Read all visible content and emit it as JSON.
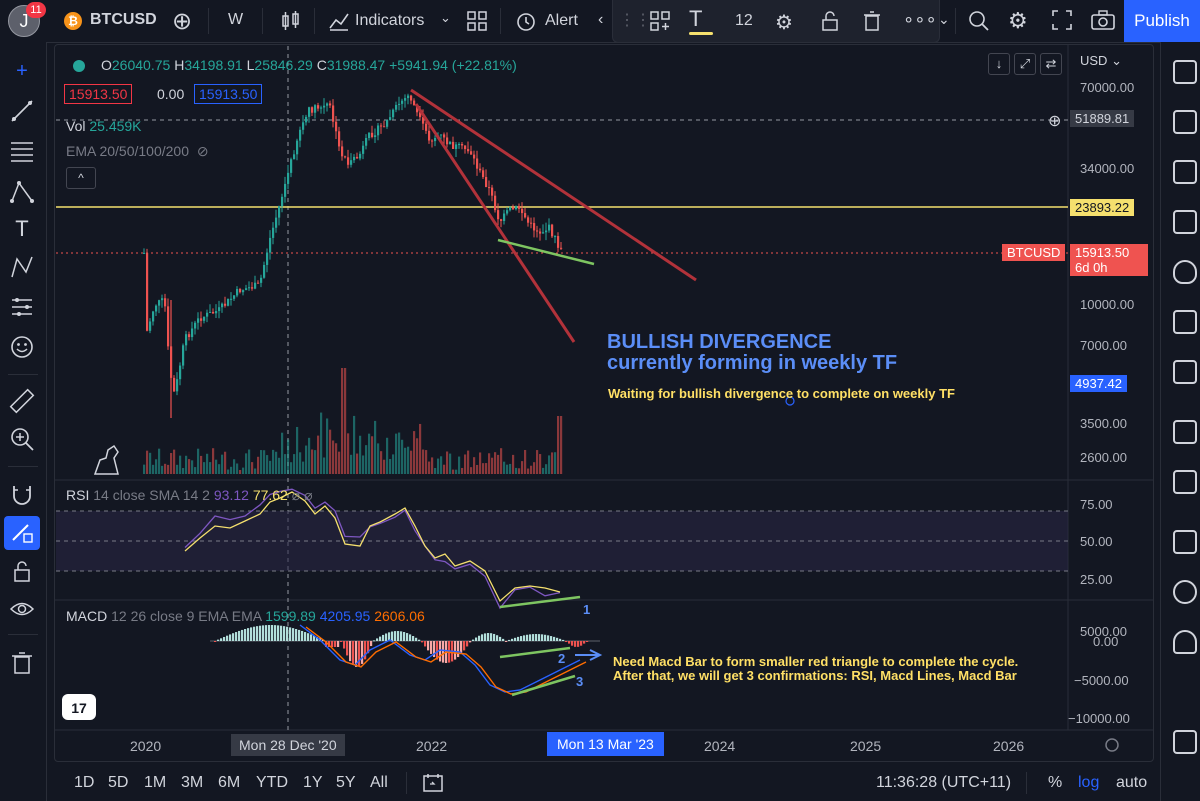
{
  "topbar": {
    "avatar_letter": "J",
    "notifications": "11",
    "symbol": "BTCUSD",
    "interval": "W",
    "indicators_label": "Indicators",
    "alert_label": "Alert",
    "font_size": "12",
    "publish_label": "Publish"
  },
  "legend": {
    "open_label": "O",
    "open": "26040.75",
    "high_label": "H",
    "high": "34198.91",
    "low_label": "L",
    "low": "25846.29",
    "close_label": "C",
    "close": "31988.47",
    "change": "+5941.94 (+22.81%)",
    "bid": "15913.50",
    "spread": "0.00",
    "ask": "15913.50",
    "vol_label": "Vol",
    "vol_value": "25.459K",
    "ema_label": "EMA 20/50/100/200",
    "currency": "USD"
  },
  "price_axis": {
    "ticks": [
      "70000.00",
      "34000.00",
      "23893.22",
      "15913.50",
      "10000.00",
      "7000.00",
      "4937.42",
      "3500.00",
      "2600.00"
    ],
    "crosshair_price": "51889.81",
    "level_price": "23893.22",
    "symbol_tag": "BTCUSD",
    "last_price": "15913.50",
    "countdown": "6d 0h",
    "marker_price": "4937.42"
  },
  "rsi": {
    "title": "RSI",
    "params": "14 close SMA 14 2",
    "value1": "93.12",
    "value2": "77.62",
    "ticks": [
      "75.00",
      "50.00",
      "25.00"
    ]
  },
  "macd": {
    "title": "MACD",
    "params": "12 26 close 9 EMA EMA",
    "hist": "1599.89",
    "macd_val": "4205.95",
    "signal": "2606.06",
    "ticks": [
      "5000.00",
      "0.00",
      "−5000.00",
      "−10000.00"
    ]
  },
  "time_axis": {
    "labels": [
      "2020",
      "2022",
      "2024",
      "2025",
      "2026"
    ],
    "crosshair_date": "Mon 28 Dec '20",
    "current_date": "Mon 13 Mar '23"
  },
  "annotations": {
    "headline1": "BULLISH DIVERGENCE",
    "headline2": "currently forming in weekly TF",
    "waiting": "Waiting for bullish divergence to complete on weekly TF",
    "macd_note1": "Need Macd Bar to form smaller red triangle to complete the cycle.",
    "macd_note2": "After that, we will get 3 confirmations: RSI, Macd Lines, Macd Bar",
    "num1": "1",
    "num2": "2",
    "num3": "3"
  },
  "bottombar": {
    "ranges": [
      "1D",
      "5D",
      "1M",
      "3M",
      "6M",
      "YTD",
      "1Y",
      "5Y",
      "All"
    ],
    "time": "11:36:28 (UTC+11)",
    "percent": "%",
    "log": "log",
    "auto": "auto"
  },
  "colors": {
    "bg": "#131722",
    "up": "#26a69a",
    "down": "#ef5350",
    "accent": "#2962ff",
    "level": "#f5e06e",
    "trendline": "#b2323a",
    "divergence": "#7ec561",
    "annotation_blue": "#5b8ef7",
    "annotation_yellow": "#ffe066"
  },
  "icons": [
    "crosshair-icon",
    "trend-line-icon",
    "fib-icon",
    "pattern-icon",
    "text-icon",
    "path-icon",
    "measure-icon",
    "emoji-icon",
    "ruler-icon",
    "zoom-icon",
    "magnet-icon",
    "lock-icon",
    "eye-icon",
    "trash-icon"
  ]
}
